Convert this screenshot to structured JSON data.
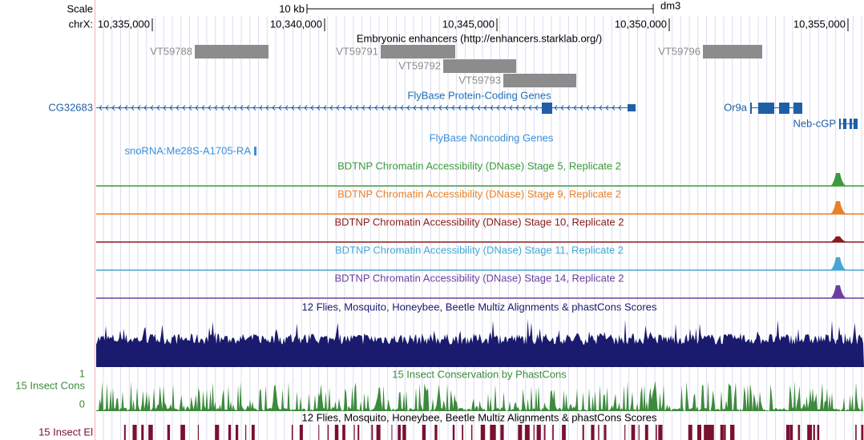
{
  "header": {
    "scale": "Scale",
    "scale_bar": "10 kb",
    "assembly": "dm3",
    "chrom": "chrX:",
    "positions": [
      "10,335,000",
      "10,340,000",
      "10,345,000",
      "10,350,000",
      "10,355,000"
    ]
  },
  "enhancers": {
    "title": "Embryonic enhancers (http://enhancers.starklab.org/)",
    "items": [
      "VT59788",
      "VT59791",
      "VT59792",
      "VT59793",
      "VT59796"
    ]
  },
  "coding_genes": {
    "title": "FlyBase Protein-Coding Genes",
    "genes": [
      "CG32683",
      "Or9a",
      "Neb-cGP"
    ]
  },
  "noncoding_genes": {
    "title": "FlyBase Noncoding Genes",
    "genes": [
      "snoRNA:Me28S-A1705-RA"
    ]
  },
  "dnase_tracks": [
    "BDTNP Chromatin Accessibility (DNase) Stage 5, Replicate 2",
    "BDTNP Chromatin Accessibility (DNase) Stage 9, Replicate 2",
    "BDTNP Chromatin Accessibility (DNase) Stage 10, Replicate 2",
    "BDTNP Chromatin Accessibility (DNase) Stage 11, Replicate 2",
    "BDTNP Chromatin Accessibility (DNase) Stage 14, Replicate 2"
  ],
  "multiz": {
    "title": "12 Flies, Mosquito, Honeybee, Beetle Multiz Alignments & phastCons Scores"
  },
  "conservation": {
    "title": "15 Insect Conservation by PhastCons",
    "side_label": "15 Insect Cons",
    "max_label": "1",
    "min_label": "0"
  },
  "elements": {
    "title": "12 Flies, Mosquito, Honeybee, Beetle Multiz Alignments & phastCons Scores",
    "side_label": "15 Insect El"
  }
}
